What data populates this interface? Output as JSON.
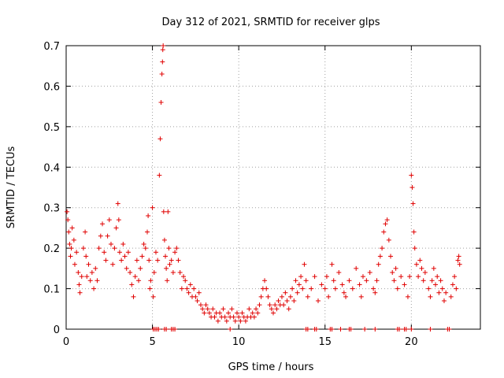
{
  "chart_data": {
    "type": "scatter",
    "title": "Day 312 of 2021, SRMTID for receiver glps",
    "xlabel": "GPS time / hours",
    "ylabel": "SRMTID / TECUs",
    "xlim": [
      0,
      24
    ],
    "ylim": [
      0,
      0.7
    ],
    "xticks": [
      0,
      5,
      10,
      15,
      20
    ],
    "xtick_labels": [
      "0",
      "5",
      "10",
      "15",
      "20"
    ],
    "yticks": [
      0,
      0.1,
      0.2,
      0.3,
      0.4,
      0.5,
      0.6,
      0.7
    ],
    "ytick_labels": [
      "0",
      "0.1",
      "0.2",
      "0.3",
      "0.4",
      "0.5",
      "0.6",
      "0.7"
    ],
    "grid": true,
    "marker": "+",
    "series_color": "#e00000",
    "series": [
      {
        "name": "SRMTID",
        "points": [
          [
            0.05,
            0.29
          ],
          [
            0.1,
            0.27
          ],
          [
            0.15,
            0.24
          ],
          [
            0.2,
            0.21
          ],
          [
            0.25,
            0.18
          ],
          [
            0.3,
            0.2
          ],
          [
            0.35,
            0.25
          ],
          [
            0.45,
            0.22
          ],
          [
            0.5,
            0.16
          ],
          [
            0.6,
            0.19
          ],
          [
            0.7,
            0.14
          ],
          [
            0.75,
            0.11
          ],
          [
            0.8,
            0.09
          ],
          [
            0.9,
            0.13
          ],
          [
            1.0,
            0.2
          ],
          [
            1.1,
            0.24
          ],
          [
            1.15,
            0.18
          ],
          [
            1.2,
            0.13
          ],
          [
            1.3,
            0.16
          ],
          [
            1.4,
            0.12
          ],
          [
            1.5,
            0.14
          ],
          [
            1.6,
            0.1
          ],
          [
            1.7,
            0.15
          ],
          [
            1.8,
            0.12
          ],
          [
            1.9,
            0.2
          ],
          [
            2.0,
            0.23
          ],
          [
            2.1,
            0.26
          ],
          [
            2.2,
            0.19
          ],
          [
            2.3,
            0.17
          ],
          [
            2.4,
            0.23
          ],
          [
            2.5,
            0.27
          ],
          [
            2.6,
            0.21
          ],
          [
            2.7,
            0.16
          ],
          [
            2.8,
            0.2
          ],
          [
            2.9,
            0.25
          ],
          [
            3.0,
            0.31
          ],
          [
            3.05,
            0.27
          ],
          [
            3.1,
            0.19
          ],
          [
            3.2,
            0.17
          ],
          [
            3.3,
            0.21
          ],
          [
            3.4,
            0.18
          ],
          [
            3.5,
            0.15
          ],
          [
            3.6,
            0.19
          ],
          [
            3.7,
            0.14
          ],
          [
            3.8,
            0.11
          ],
          [
            3.9,
            0.08
          ],
          [
            4.0,
            0.13
          ],
          [
            4.1,
            0.17
          ],
          [
            4.2,
            0.12
          ],
          [
            4.3,
            0.15
          ],
          [
            4.4,
            0.18
          ],
          [
            4.5,
            0.21
          ],
          [
            4.6,
            0.2
          ],
          [
            4.7,
            0.24
          ],
          [
            4.75,
            0.28
          ],
          [
            4.8,
            0.17
          ],
          [
            4.85,
            0.1
          ],
          [
            4.9,
            0.12
          ],
          [
            5.0,
            0.3
          ],
          [
            5.05,
            0.08
          ],
          [
            5.1,
            0.14
          ],
          [
            5.2,
            0.19
          ],
          [
            5.3,
            0.17
          ],
          [
            5.4,
            0.38
          ],
          [
            5.45,
            0.47
          ],
          [
            5.5,
            0.56
          ],
          [
            5.55,
            0.63
          ],
          [
            5.58,
            0.66
          ],
          [
            5.6,
            0.69
          ],
          [
            5.62,
            0.7
          ],
          [
            5.65,
            0.29
          ],
          [
            5.7,
            0.22
          ],
          [
            5.75,
            0.18
          ],
          [
            5.8,
            0.15
          ],
          [
            5.85,
            0.12
          ],
          [
            5.9,
            0.29
          ],
          [
            5.95,
            0.2
          ],
          [
            6.0,
            0.16
          ],
          [
            6.1,
            0.17
          ],
          [
            6.2,
            0.14
          ],
          [
            6.3,
            0.19
          ],
          [
            6.4,
            0.2
          ],
          [
            6.5,
            0.17
          ],
          [
            6.6,
            0.14
          ],
          [
            6.7,
            0.1
          ],
          [
            6.8,
            0.13
          ],
          [
            6.9,
            0.12
          ],
          [
            7.0,
            0.1
          ],
          [
            7.1,
            0.09
          ],
          [
            7.2,
            0.11
          ],
          [
            7.3,
            0.08
          ],
          [
            7.4,
            0.1
          ],
          [
            7.5,
            0.08
          ],
          [
            7.6,
            0.07
          ],
          [
            7.7,
            0.09
          ],
          [
            7.8,
            0.06
          ],
          [
            7.9,
            0.05
          ],
          [
            8.0,
            0.04
          ],
          [
            8.1,
            0.06
          ],
          [
            8.2,
            0.05
          ],
          [
            8.3,
            0.04
          ],
          [
            8.4,
            0.03
          ],
          [
            8.5,
            0.05
          ],
          [
            8.6,
            0.03
          ],
          [
            8.7,
            0.04
          ],
          [
            8.8,
            0.02
          ],
          [
            8.9,
            0.04
          ],
          [
            9.0,
            0.03
          ],
          [
            9.1,
            0.05
          ],
          [
            9.2,
            0.03
          ],
          [
            9.3,
            0.02
          ],
          [
            9.4,
            0.04
          ],
          [
            9.5,
            0.03
          ],
          [
            9.6,
            0.05
          ],
          [
            9.7,
            0.03
          ],
          [
            9.8,
            0.02
          ],
          [
            9.9,
            0.04
          ],
          [
            10.0,
            0.03
          ],
          [
            10.1,
            0.02
          ],
          [
            10.2,
            0.04
          ],
          [
            10.3,
            0.03
          ],
          [
            10.4,
            0.02
          ],
          [
            10.5,
            0.03
          ],
          [
            10.6,
            0.05
          ],
          [
            10.7,
            0.03
          ],
          [
            10.8,
            0.04
          ],
          [
            10.9,
            0.03
          ],
          [
            11.0,
            0.05
          ],
          [
            11.1,
            0.04
          ],
          [
            11.2,
            0.06
          ],
          [
            11.3,
            0.08
          ],
          [
            11.4,
            0.1
          ],
          [
            11.5,
            0.12
          ],
          [
            11.6,
            0.1
          ],
          [
            11.7,
            0.08
          ],
          [
            11.8,
            0.06
          ],
          [
            11.9,
            0.05
          ],
          [
            12.0,
            0.04
          ],
          [
            12.1,
            0.06
          ],
          [
            12.2,
            0.05
          ],
          [
            12.3,
            0.07
          ],
          [
            12.4,
            0.06
          ],
          [
            12.5,
            0.08
          ],
          [
            12.6,
            0.06
          ],
          [
            12.7,
            0.09
          ],
          [
            12.8,
            0.07
          ],
          [
            12.9,
            0.05
          ],
          [
            13.0,
            0.08
          ],
          [
            13.1,
            0.1
          ],
          [
            13.2,
            0.07
          ],
          [
            13.3,
            0.12
          ],
          [
            13.4,
            0.09
          ],
          [
            13.5,
            0.11
          ],
          [
            13.6,
            0.13
          ],
          [
            13.7,
            0.1
          ],
          [
            13.8,
            0.16
          ],
          [
            13.9,
            0.12
          ],
          [
            14.0,
            0.08
          ],
          [
            14.2,
            0.1
          ],
          [
            14.4,
            0.13
          ],
          [
            14.6,
            0.07
          ],
          [
            14.8,
            0.11
          ],
          [
            15.0,
            0.1
          ],
          [
            15.1,
            0.13
          ],
          [
            15.2,
            0.08
          ],
          [
            15.4,
            0.16
          ],
          [
            15.5,
            0.12
          ],
          [
            15.6,
            0.1
          ],
          [
            15.8,
            0.14
          ],
          [
            16.0,
            0.11
          ],
          [
            16.1,
            0.09
          ],
          [
            16.2,
            0.08
          ],
          [
            16.4,
            0.12
          ],
          [
            16.6,
            0.1
          ],
          [
            16.8,
            0.15
          ],
          [
            17.0,
            0.11
          ],
          [
            17.1,
            0.08
          ],
          [
            17.2,
            0.13
          ],
          [
            17.4,
            0.12
          ],
          [
            17.6,
            0.14
          ],
          [
            17.8,
            0.1
          ],
          [
            17.9,
            0.09
          ],
          [
            18.0,
            0.12
          ],
          [
            18.1,
            0.16
          ],
          [
            18.2,
            0.18
          ],
          [
            18.3,
            0.2
          ],
          [
            18.4,
            0.24
          ],
          [
            18.5,
            0.26
          ],
          [
            18.6,
            0.27
          ],
          [
            18.7,
            0.22
          ],
          [
            18.8,
            0.18
          ],
          [
            18.9,
            0.14
          ],
          [
            19.0,
            0.12
          ],
          [
            19.1,
            0.15
          ],
          [
            19.2,
            0.1
          ],
          [
            19.4,
            0.13
          ],
          [
            19.6,
            0.11
          ],
          [
            19.8,
            0.08
          ],
          [
            19.9,
            0.13
          ],
          [
            20.0,
            0.38
          ],
          [
            20.05,
            0.35
          ],
          [
            20.1,
            0.31
          ],
          [
            20.15,
            0.24
          ],
          [
            20.2,
            0.2
          ],
          [
            20.3,
            0.16
          ],
          [
            20.4,
            0.13
          ],
          [
            20.5,
            0.17
          ],
          [
            20.6,
            0.15
          ],
          [
            20.7,
            0.12
          ],
          [
            20.8,
            0.14
          ],
          [
            21.0,
            0.1
          ],
          [
            21.1,
            0.08
          ],
          [
            21.2,
            0.12
          ],
          [
            21.3,
            0.15
          ],
          [
            21.4,
            0.11
          ],
          [
            21.5,
            0.13
          ],
          [
            21.6,
            0.09
          ],
          [
            21.7,
            0.12
          ],
          [
            21.8,
            0.1
          ],
          [
            21.9,
            0.07
          ],
          [
            22.0,
            0.09
          ],
          [
            22.3,
            0.08
          ],
          [
            22.4,
            0.11
          ],
          [
            22.5,
            0.13
          ],
          [
            22.6,
            0.1
          ],
          [
            22.7,
            0.17
          ],
          [
            22.75,
            0.18
          ],
          [
            22.8,
            0.16
          ]
        ],
        "zero_points": [
          5.05,
          5.15,
          5.25,
          5.35,
          5.7,
          5.8,
          6.1,
          6.2,
          6.3,
          9.5,
          13.9,
          14.0,
          14.4,
          14.5,
          15.3,
          15.4,
          15.9,
          16.4,
          16.5,
          17.3,
          17.9,
          19.2,
          19.3,
          19.6,
          19.7,
          20.0,
          21.1,
          22.1,
          22.2
        ]
      }
    ]
  }
}
